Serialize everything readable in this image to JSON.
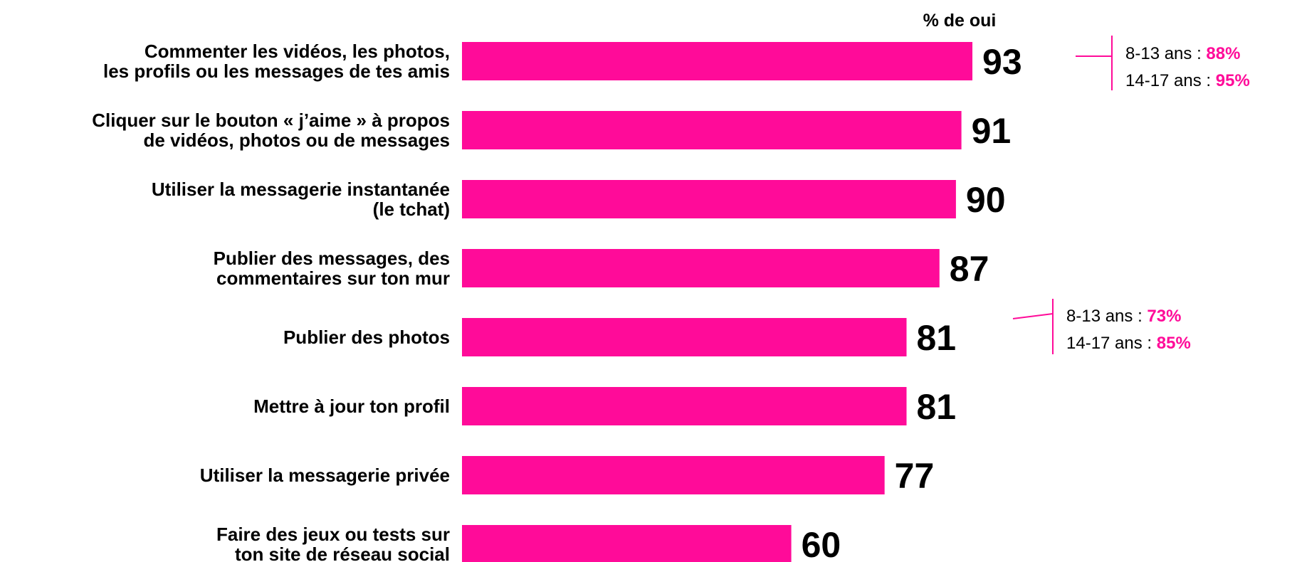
{
  "colors": {
    "bar": "#ff0b99",
    "text": "#000000",
    "accent": "#ff0b99"
  },
  "chart_data": {
    "type": "bar",
    "orientation": "horizontal",
    "header": "% de oui",
    "categories": [
      [
        "Commenter les vidéos, les photos,",
        "les profils ou les messages de tes amis"
      ],
      [
        "Cliquer sur le bouton « j’aime » à propos",
        "de vidéos, photos ou de messages"
      ],
      [
        "Utiliser la messagerie instantanée",
        "(le tchat)"
      ],
      [
        "Publier des messages, des",
        "commentaires sur ton mur"
      ],
      [
        "Publier des photos"
      ],
      [
        "Mettre à jour ton profil"
      ],
      [
        "Utiliser la messagerie privée"
      ],
      [
        "Faire des jeux ou tests sur",
        "ton site de réseau social"
      ]
    ],
    "values": [
      93,
      91,
      90,
      87,
      81,
      81,
      77,
      60
    ],
    "xlim": [
      0,
      100
    ],
    "grid": false,
    "legend": "none",
    "annotations": [
      {
        "category_index": 0,
        "lines": [
          {
            "label": "8-13 ans : ",
            "value": "88%"
          },
          {
            "label": "14-17 ans : ",
            "value": "95%"
          }
        ]
      },
      {
        "category_index": 4,
        "lines": [
          {
            "label": "8-13 ans : ",
            "value": "73%"
          },
          {
            "label": "14-17 ans : ",
            "value": "85%"
          }
        ]
      }
    ]
  }
}
